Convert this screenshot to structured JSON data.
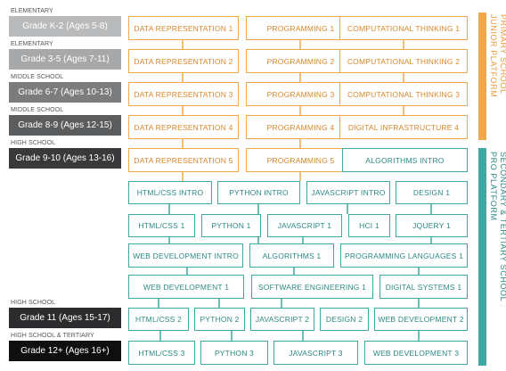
{
  "stages": [
    {
      "label": "ELEMENTARY"
    },
    {
      "label": "ELEMENTARY"
    },
    {
      "label": "MIDDLE SCHOOL"
    },
    {
      "label": "MIDDLE SCHOOL"
    },
    {
      "label": "HIGH SCHOOL"
    },
    {
      "label": "HIGH SCHOOL"
    },
    {
      "label": "HIGH SCHOOL & TERTIARY"
    }
  ],
  "grades": [
    {
      "label": "Grade K-2 (Ages 5-8)",
      "color": "#b9babb"
    },
    {
      "label": "Grade 3-5 (Ages 7-11)",
      "color": "#a7a8a9"
    },
    {
      "label": "Grade 6-7 (Ages 10-13)",
      "color": "#7b7c7e"
    },
    {
      "label": "Grade 8-9 (Ages 12-15)",
      "color": "#5b5c5e"
    },
    {
      "label": "Grade 9-10 (Ages 13-16)",
      "color": "#39393b"
    },
    {
      "label": "Grade 11 (Ages 15-17)",
      "color": "#2c2c2e"
    },
    {
      "label": "Grade 12+ (Ages 16+)",
      "color": "#0f0f10"
    }
  ],
  "junior_courses": [
    [
      "DATA REPRESENTATION 1",
      "PROGRAMMING 1",
      "COMPUTATIONAL THINKING 1"
    ],
    [
      "DATA REPRESENTATION 2",
      "PROGRAMMING 2",
      "COMPUTATIONAL THINKING 2"
    ],
    [
      "DATA REPRESENTATION 3",
      "PROGRAMMING 3",
      "COMPUTATIONAL THINKING 3"
    ],
    [
      "DATA REPRESENTATION 4",
      "PROGRAMMING 4",
      "DIGITAL INFRASTRUCTURE 4"
    ],
    [
      "DATA REPRESENTATION 5",
      "PROGRAMMING 5"
    ]
  ],
  "pro_courses": [
    "ALGORITHMS INTRO",
    "HTML/CSS INTRO",
    "PYTHON INTRO",
    "JAVASCRIPT INTRO",
    "DESIGN 1",
    "HTML/CSS 1",
    "PYTHON 1",
    "JAVASCRIPT 1",
    "HCI 1",
    "JQUERY 1",
    "WEB DEVELOPMENT INTRO",
    "ALGORITHMS 1",
    "PROGRAMMING LANGUAGES 1",
    "WEB DEVELOPMENT 1",
    "SOFTWARE ENGINEERING 1",
    "DIGITAL SYSTEMS 1",
    "HTML/CSS 2",
    "PYTHON 2",
    "JAVASCRIPT 2",
    "DESIGN 2",
    "WEB DEVELOPMENT 2",
    "HTML/CSS 3",
    "PYTHON 3",
    "JAVASCRIPT 3",
    "WEB DEVELOPMENT 3"
  ],
  "platforms": {
    "junior": {
      "line1": "PRIMARY SCHOOL",
      "line2": "JUNIOR PLATFORM",
      "color": "#f0a84a"
    },
    "pro": {
      "line1": "SECONDARY & TERTIARY SCHOOL",
      "line2": "PRO PLATFORM",
      "color": "#3ea8a2"
    }
  },
  "colors": {
    "orange_text": "#d9862a",
    "teal_text": "#2b8a85"
  }
}
